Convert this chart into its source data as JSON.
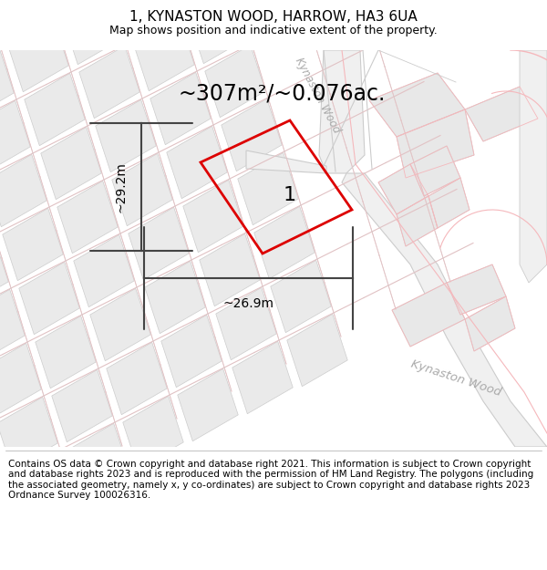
{
  "title": "1, KYNASTON WOOD, HARROW, HA3 6UA",
  "subtitle": "Map shows position and indicative extent of the property.",
  "area_text": "~307m²/~0.076ac.",
  "dim_width": "~26.9m",
  "dim_height": "~29.2m",
  "plot_label": "1",
  "footer": "Contains OS data © Crown copyright and database right 2021. This information is subject to Crown copyright and database rights 2023 and is reproduced with the permission of HM Land Registry. The polygons (including the associated geometry, namely x, y co-ordinates) are subject to Crown copyright and database rights 2023 Ordnance Survey 100026316.",
  "bg_color": "#f5f5f5",
  "plot_color": "#dd0000",
  "street_label_top": "Kynaston Wood",
  "street_label_bottom": "Kynaston Wood",
  "building_fill": "#e8e8e8",
  "building_edge": "#bbbbbb",
  "road_line_color": "#f5b8bc",
  "road_outline_color": "#cccccc",
  "title_fontsize": 11,
  "subtitle_fontsize": 9,
  "area_fontsize": 17,
  "label_fontsize": 16,
  "dim_fontsize": 10,
  "footer_fontsize": 7.5
}
